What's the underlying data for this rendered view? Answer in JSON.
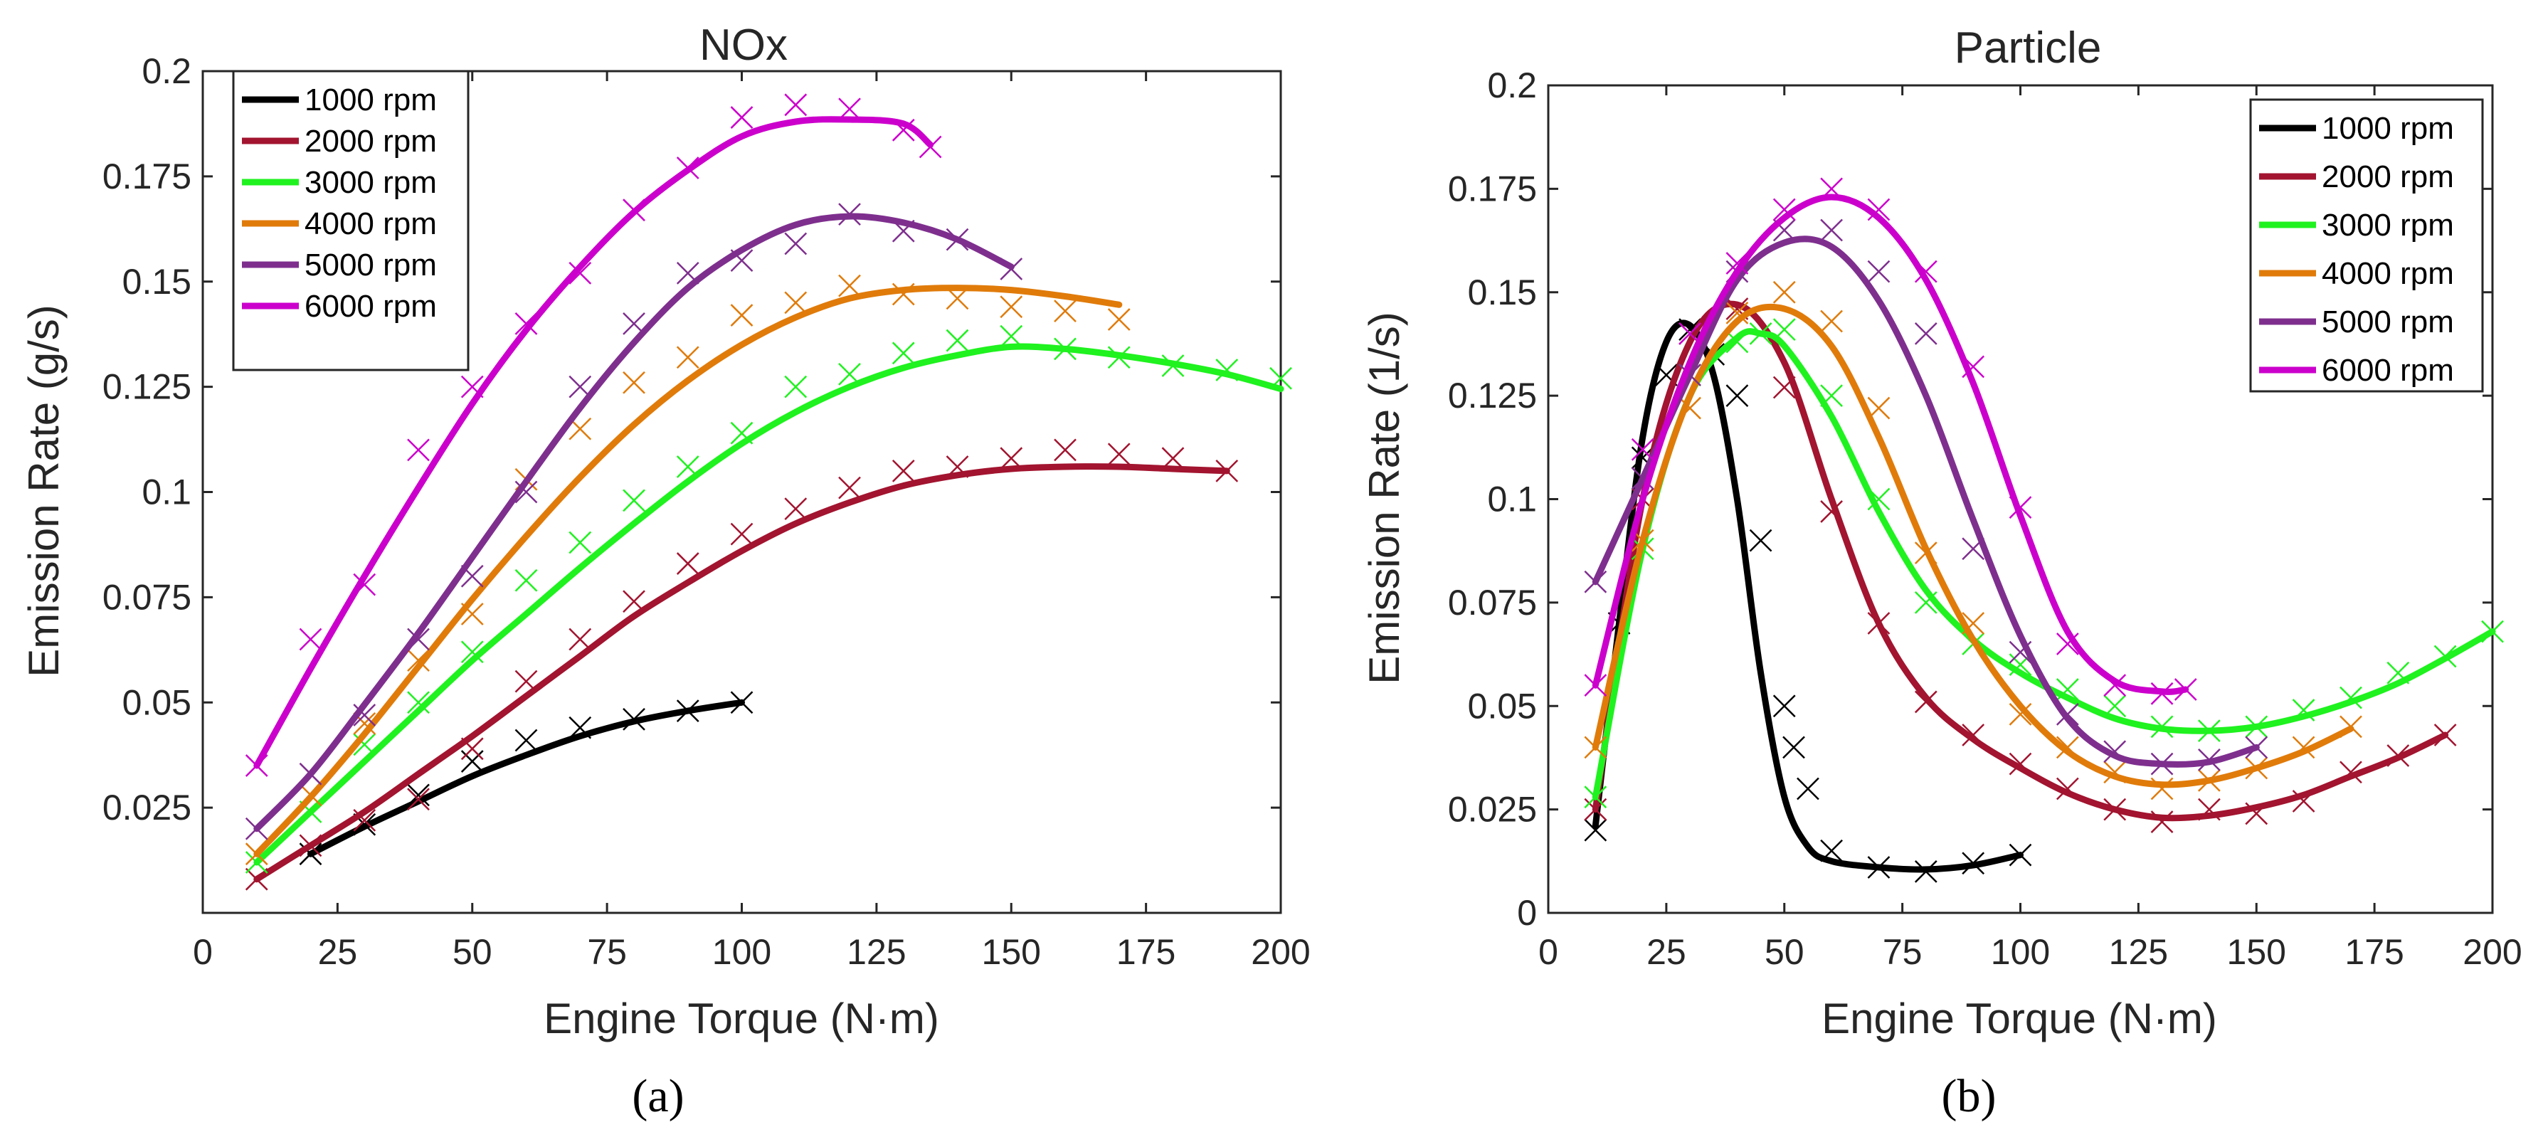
{
  "figure": {
    "colors": {
      "1000 rpm": "#000000",
      "2000 rpm": "#a2142f",
      "3000 rpm": "#1ff21f",
      "4000 rpm": "#e07b0a",
      "5000 rpm": "#7e2f8e",
      "6000 rpm": "#cc00cc"
    }
  },
  "chart_data": [
    {
      "type": "line",
      "panel_label": "(a)",
      "title": "NOx",
      "xlabel": "Engine Torque (N·m)",
      "ylabel": "Emission Rate (g/s)",
      "xlim": [
        0,
        200
      ],
      "ylim": [
        0,
        0.2
      ],
      "xticks": [
        0,
        25,
        50,
        75,
        100,
        125,
        150,
        175,
        200
      ],
      "xtick_labels": [
        "0",
        "25",
        "50",
        "75",
        "100",
        "125",
        "150",
        "175",
        "200"
      ],
      "yticks": [
        0.025,
        0.05,
        0.075,
        0.1,
        0.125,
        0.15,
        0.175,
        0.2
      ],
      "ytick_labels": [
        "0.025",
        "0.05",
        "0.075",
        "0.1",
        "0.125",
        "0.15",
        "0.175",
        "0.2"
      ],
      "legend_position": "top-left",
      "legend": [
        "1000 rpm",
        "2000 rpm",
        "3000 rpm",
        "4000 rpm",
        "5000 rpm",
        "6000 rpm"
      ],
      "series": [
        {
          "name": "1000 rpm",
          "fit_x": [
            20,
            30,
            40,
            50,
            60,
            70,
            80,
            90,
            100
          ],
          "fit_y": [
            0.014,
            0.0205,
            0.0265,
            0.0325,
            0.0375,
            0.042,
            0.0455,
            0.048,
            0.05
          ],
          "markers_x": [
            20,
            30,
            40,
            50,
            60,
            70,
            80,
            90,
            100
          ],
          "markers_y": [
            0.014,
            0.021,
            0.028,
            0.036,
            0.041,
            0.044,
            0.046,
            0.048,
            0.05
          ]
        },
        {
          "name": "2000 rpm",
          "fit_x": [
            10,
            20,
            30,
            40,
            50,
            60,
            70,
            80,
            90,
            100,
            110,
            120,
            130,
            140,
            150,
            160,
            170,
            180,
            190
          ],
          "fit_y": [
            0.008,
            0.016,
            0.024,
            0.033,
            0.042,
            0.0515,
            0.061,
            0.0705,
            0.0785,
            0.086,
            0.0925,
            0.0975,
            0.1015,
            0.104,
            0.1055,
            0.106,
            0.106,
            0.1055,
            0.105
          ],
          "markers_x": [
            10,
            20,
            30,
            40,
            50,
            60,
            70,
            80,
            90,
            100,
            110,
            120,
            130,
            140,
            150,
            160,
            170,
            180,
            190
          ],
          "markers_y": [
            0.008,
            0.016,
            0.022,
            0.027,
            0.039,
            0.055,
            0.065,
            0.074,
            0.083,
            0.09,
            0.096,
            0.101,
            0.105,
            0.106,
            0.108,
            0.11,
            0.109,
            0.108,
            0.105
          ]
        },
        {
          "name": "3000 rpm",
          "fit_x": [
            10,
            20,
            30,
            40,
            50,
            60,
            70,
            80,
            90,
            100,
            110,
            120,
            130,
            140,
            150,
            160,
            170,
            180,
            190,
            200
          ],
          "fit_y": [
            0.012,
            0.024,
            0.036,
            0.048,
            0.06,
            0.071,
            0.082,
            0.0925,
            0.1025,
            0.1115,
            0.119,
            0.125,
            0.1295,
            0.1325,
            0.1345,
            0.134,
            0.1325,
            0.1305,
            0.128,
            0.1245
          ],
          "markers_x": [
            10,
            20,
            30,
            40,
            50,
            60,
            70,
            80,
            90,
            100,
            110,
            120,
            130,
            140,
            150,
            160,
            170,
            180,
            190,
            200
          ],
          "markers_y": [
            0.012,
            0.024,
            0.04,
            0.05,
            0.062,
            0.079,
            0.088,
            0.098,
            0.106,
            0.114,
            0.125,
            0.128,
            0.133,
            0.136,
            0.137,
            0.134,
            0.132,
            0.13,
            0.129,
            0.127
          ]
        },
        {
          "name": "4000 rpm",
          "fit_x": [
            10,
            20,
            30,
            40,
            50,
            60,
            70,
            80,
            90,
            100,
            110,
            120,
            130,
            140,
            150,
            160,
            170
          ],
          "fit_y": [
            0.014,
            0.0275,
            0.0425,
            0.0585,
            0.0745,
            0.0895,
            0.1035,
            0.116,
            0.1265,
            0.135,
            0.1415,
            0.146,
            0.148,
            0.1485,
            0.148,
            0.1465,
            0.1445
          ],
          "markers_x": [
            10,
            20,
            30,
            40,
            50,
            60,
            70,
            80,
            90,
            100,
            110,
            120,
            130,
            140,
            150,
            160,
            170
          ],
          "markers_y": [
            0.014,
            0.028,
            0.045,
            0.06,
            0.071,
            0.103,
            0.115,
            0.126,
            0.132,
            0.142,
            0.145,
            0.149,
            0.147,
            0.146,
            0.144,
            0.143,
            0.141
          ]
        },
        {
          "name": "5000 rpm",
          "fit_x": [
            10,
            20,
            30,
            40,
            50,
            60,
            70,
            80,
            90,
            100,
            110,
            120,
            130,
            140,
            150
          ],
          "fit_y": [
            0.02,
            0.033,
            0.0495,
            0.0665,
            0.0845,
            0.1025,
            0.12,
            0.1355,
            0.1485,
            0.1575,
            0.1635,
            0.1655,
            0.164,
            0.16,
            0.1535
          ],
          "markers_x": [
            10,
            20,
            30,
            40,
            50,
            60,
            70,
            80,
            90,
            100,
            110,
            120,
            130,
            140,
            150
          ],
          "markers_y": [
            0.02,
            0.033,
            0.047,
            0.065,
            0.08,
            0.1,
            0.125,
            0.14,
            0.152,
            0.155,
            0.159,
            0.166,
            0.162,
            0.16,
            0.153
          ]
        },
        {
          "name": "6000 rpm",
          "fit_x": [
            10,
            20,
            30,
            40,
            50,
            60,
            70,
            80,
            90,
            100,
            110,
            120,
            130,
            135
          ],
          "fit_y": [
            0.035,
            0.058,
            0.08,
            0.101,
            0.121,
            0.1385,
            0.1535,
            0.1665,
            0.1765,
            0.1845,
            0.188,
            0.1885,
            0.1875,
            0.1825
          ],
          "markers_x": [
            10,
            20,
            30,
            40,
            50,
            60,
            70,
            80,
            90,
            100,
            110,
            120,
            130,
            135
          ],
          "markers_y": [
            0.035,
            0.065,
            0.078,
            0.11,
            0.125,
            0.14,
            0.152,
            0.167,
            0.177,
            0.189,
            0.192,
            0.191,
            0.186,
            0.182
          ]
        }
      ]
    },
    {
      "type": "line",
      "panel_label": "(b)",
      "title": "Particle",
      "xlabel": "Engine Torque (N·m)",
      "ylabel": "Emission Rate (1/s)",
      "xlim": [
        0,
        200
      ],
      "ylim": [
        0,
        0.2
      ],
      "xticks": [
        0,
        25,
        50,
        75,
        100,
        125,
        150,
        175,
        200
      ],
      "xtick_labels": [
        "0",
        "25",
        "50",
        "75",
        "100",
        "125",
        "150",
        "175",
        "200"
      ],
      "yticks": [
        0,
        0.025,
        0.05,
        0.075,
        0.1,
        0.125,
        0.15,
        0.175,
        0.2
      ],
      "ytick_labels": [
        "0",
        "0.025",
        "0.05",
        "0.075",
        "0.1",
        "0.125",
        "0.15",
        "0.175",
        "0.2"
      ],
      "legend_position": "top-right",
      "legend": [
        "1000 rpm",
        "2000 rpm",
        "3000 rpm",
        "4000 rpm",
        "5000 rpm",
        "6000 rpm"
      ],
      "series": [
        {
          "name": "1000 rpm",
          "fit_x": [
            10,
            15,
            20,
            25,
            30,
            35,
            40,
            45,
            50,
            55,
            60,
            70,
            80,
            90,
            100
          ],
          "fit_y": [
            0.021,
            0.07,
            0.115,
            0.138,
            0.142,
            0.13,
            0.1,
            0.058,
            0.028,
            0.016,
            0.0125,
            0.011,
            0.0105,
            0.0115,
            0.014
          ],
          "markers_x": [
            10,
            15,
            20,
            25,
            30,
            35,
            40,
            45,
            50,
            52,
            55,
            60,
            70,
            80,
            90,
            100
          ],
          "markers_y": [
            0.02,
            0.07,
            0.11,
            0.13,
            0.141,
            0.135,
            0.125,
            0.09,
            0.05,
            0.04,
            0.03,
            0.015,
            0.011,
            0.01,
            0.012,
            0.014
          ]
        },
        {
          "name": "2000 rpm",
          "fit_x": [
            10,
            20,
            30,
            40,
            50,
            60,
            70,
            80,
            90,
            100,
            110,
            120,
            130,
            140,
            150,
            160,
            170,
            180,
            190
          ],
          "fit_y": [
            0.025,
            0.1,
            0.138,
            0.147,
            0.133,
            0.1,
            0.07,
            0.052,
            0.042,
            0.035,
            0.029,
            0.025,
            0.023,
            0.0235,
            0.0255,
            0.0285,
            0.033,
            0.0375,
            0.043
          ],
          "markers_x": [
            10,
            20,
            30,
            40,
            50,
            60,
            70,
            80,
            90,
            100,
            110,
            120,
            130,
            140,
            150,
            160,
            170,
            180,
            190
          ],
          "markers_y": [
            0.025,
            0.1,
            0.14,
            0.146,
            0.127,
            0.097,
            0.07,
            0.051,
            0.043,
            0.036,
            0.03,
            0.025,
            0.022,
            0.025,
            0.024,
            0.027,
            0.034,
            0.038,
            0.043
          ]
        },
        {
          "name": "3000 rpm",
          "fit_x": [
            10,
            20,
            30,
            40,
            45,
            50,
            60,
            70,
            80,
            90,
            100,
            110,
            120,
            130,
            140,
            150,
            160,
            170,
            180,
            190,
            200
          ],
          "fit_y": [
            0.028,
            0.088,
            0.125,
            0.139,
            0.14,
            0.137,
            0.12,
            0.097,
            0.078,
            0.066,
            0.058,
            0.052,
            0.047,
            0.0445,
            0.044,
            0.045,
            0.0475,
            0.051,
            0.0555,
            0.0615,
            0.068
          ],
          "markers_x": [
            10,
            20,
            30,
            40,
            45,
            50,
            60,
            70,
            80,
            90,
            100,
            110,
            120,
            130,
            140,
            150,
            160,
            170,
            180,
            190,
            200
          ],
          "markers_y": [
            0.028,
            0.088,
            0.13,
            0.138,
            0.14,
            0.141,
            0.125,
            0.1,
            0.075,
            0.065,
            0.06,
            0.054,
            0.05,
            0.045,
            0.044,
            0.045,
            0.049,
            0.052,
            0.058,
            0.062,
            0.068
          ]
        },
        {
          "name": "4000 rpm",
          "fit_x": [
            10,
            20,
            30,
            40,
            50,
            60,
            70,
            80,
            90,
            100,
            110,
            120,
            130,
            140,
            150,
            160,
            170
          ],
          "fit_y": [
            0.04,
            0.09,
            0.125,
            0.143,
            0.146,
            0.137,
            0.115,
            0.088,
            0.066,
            0.05,
            0.039,
            0.033,
            0.031,
            0.032,
            0.035,
            0.039,
            0.0445
          ],
          "markers_x": [
            10,
            20,
            30,
            40,
            50,
            60,
            70,
            80,
            90,
            100,
            110,
            120,
            130,
            140,
            150,
            160,
            170
          ],
          "markers_y": [
            0.04,
            0.09,
            0.122,
            0.145,
            0.15,
            0.143,
            0.122,
            0.087,
            0.07,
            0.048,
            0.04,
            0.034,
            0.03,
            0.032,
            0.035,
            0.04,
            0.045
          ]
        },
        {
          "name": "5000 rpm",
          "fit_x": [
            10,
            20,
            30,
            40,
            50,
            60,
            70,
            80,
            90,
            100,
            110,
            120,
            130,
            140,
            150
          ],
          "fit_y": [
            0.08,
            0.105,
            0.13,
            0.153,
            0.162,
            0.161,
            0.148,
            0.125,
            0.095,
            0.067,
            0.047,
            0.038,
            0.036,
            0.0365,
            0.04
          ],
          "markers_x": [
            10,
            20,
            30,
            40,
            50,
            60,
            70,
            80,
            90,
            100,
            110,
            120,
            130,
            140,
            150
          ],
          "markers_y": [
            0.08,
            0.105,
            0.13,
            0.155,
            0.165,
            0.165,
            0.155,
            0.14,
            0.088,
            0.063,
            0.048,
            0.039,
            0.036,
            0.037,
            0.04
          ]
        },
        {
          "name": "6000 rpm",
          "fit_x": [
            10,
            20,
            30,
            40,
            50,
            60,
            70,
            80,
            90,
            100,
            110,
            120,
            130,
            135
          ],
          "fit_y": [
            0.055,
            0.1,
            0.133,
            0.155,
            0.168,
            0.173,
            0.168,
            0.153,
            0.128,
            0.096,
            0.068,
            0.056,
            0.0535,
            0.054
          ],
          "markers_x": [
            10,
            20,
            30,
            40,
            50,
            60,
            70,
            80,
            90,
            100,
            110,
            120,
            130,
            135
          ],
          "markers_y": [
            0.055,
            0.112,
            0.14,
            0.157,
            0.17,
            0.175,
            0.17,
            0.155,
            0.132,
            0.098,
            0.065,
            0.055,
            0.053,
            0.054
          ]
        }
      ]
    }
  ]
}
